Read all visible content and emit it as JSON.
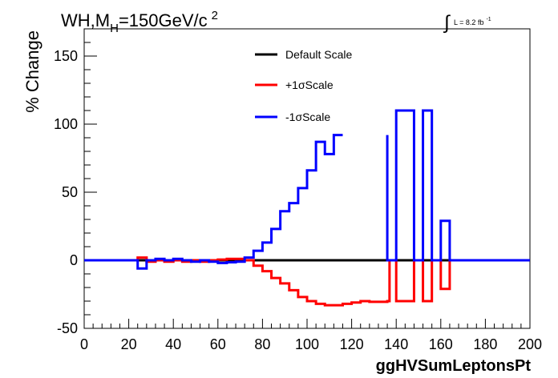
{
  "chart_data": {
    "type": "line",
    "title": "WH,M",
    "title_subscript": "H",
    "title_rest": "=150GeV/c",
    "title_superscript": "2",
    "lumi_integral": "∫",
    "lumi_text": "L = 8.2 fb",
    "lumi_superscript": "-1",
    "xlabel": "ggHVSumLeptonsPt",
    "ylabel": "% Change",
    "xlim": [
      0,
      200
    ],
    "ylim": [
      -50,
      170
    ],
    "x_ticks": [
      0,
      20,
      40,
      60,
      80,
      100,
      120,
      140,
      160,
      180,
      200
    ],
    "y_ticks": [
      -50,
      0,
      50,
      100,
      150
    ],
    "grid": false,
    "legend_position": "top-center",
    "series": [
      {
        "name": "Default Scale",
        "color": "#000000",
        "x": [
          0,
          200
        ],
        "y": [
          0,
          0
        ]
      },
      {
        "name": "+1σScale",
        "color": "#ff0000",
        "x": [
          0,
          24,
          24,
          28,
          28,
          32,
          32,
          36,
          36,
          40,
          40,
          44,
          44,
          48,
          48,
          52,
          52,
          56,
          56,
          60,
          60,
          64,
          64,
          68,
          68,
          72,
          72,
          76,
          76,
          80,
          80,
          84,
          84,
          88,
          88,
          92,
          92,
          96,
          96,
          100,
          100,
          104,
          104,
          108,
          108,
          112,
          112,
          116,
          116,
          120,
          120,
          124,
          124,
          128,
          128,
          136,
          136,
          137,
          137,
          140,
          140,
          148,
          148,
          152,
          152,
          156,
          156,
          160,
          160,
          164,
          164,
          200
        ],
        "y": [
          0,
          0,
          2,
          2,
          -1,
          -1,
          0,
          0,
          -1,
          -1,
          0,
          0,
          -1,
          -1,
          0,
          0,
          -1,
          -1,
          0,
          0,
          0.5,
          0.5,
          1,
          1,
          1,
          1,
          0,
          0,
          -4,
          -4,
          -8,
          -8,
          -13,
          -13,
          -17,
          -17,
          -22,
          -22,
          -27,
          -27,
          -30,
          -30,
          -32,
          -32,
          -33,
          -33,
          -33,
          -33,
          -32,
          -32,
          -31,
          -31,
          -30,
          -30,
          -30.5,
          -30.5,
          -30,
          -30,
          0,
          0,
          -30,
          -30,
          0,
          0,
          -30,
          -30,
          0,
          0,
          -21,
          -21,
          0,
          0
        ]
      },
      {
        "name": "-1σScale",
        "color": "#0000ff",
        "x": [
          0,
          24,
          24,
          28,
          28,
          32,
          32,
          36,
          36,
          40,
          40,
          44,
          44,
          48,
          48,
          52,
          52,
          56,
          56,
          60,
          60,
          64,
          64,
          68,
          68,
          72,
          72,
          76,
          76,
          80,
          80,
          84,
          84,
          88,
          88,
          92,
          92,
          96,
          96,
          100,
          100,
          104,
          104,
          108,
          108,
          112,
          112,
          116,
          116,
          120,
          136,
          136,
          137,
          137,
          140,
          140,
          148,
          148,
          152,
          152,
          156,
          156,
          160,
          160,
          164,
          164,
          200
        ],
        "y": [
          0,
          0,
          -6,
          -6,
          0,
          0,
          1,
          1,
          0,
          0,
          1,
          1,
          0,
          0,
          -1,
          -1,
          0,
          0,
          -1,
          -1,
          -2,
          -2,
          -1.5,
          -1.5,
          -1,
          -1,
          2,
          2,
          7,
          7,
          13,
          13,
          23,
          23,
          36,
          36,
          42,
          42,
          53,
          53,
          66,
          66,
          87,
          87,
          78,
          78,
          92,
          92,
          92,
          null,
          92,
          0,
          0,
          0,
          0,
          110,
          110,
          0,
          0,
          110,
          110,
          0,
          0,
          29,
          29,
          0,
          0
        ]
      }
    ]
  }
}
